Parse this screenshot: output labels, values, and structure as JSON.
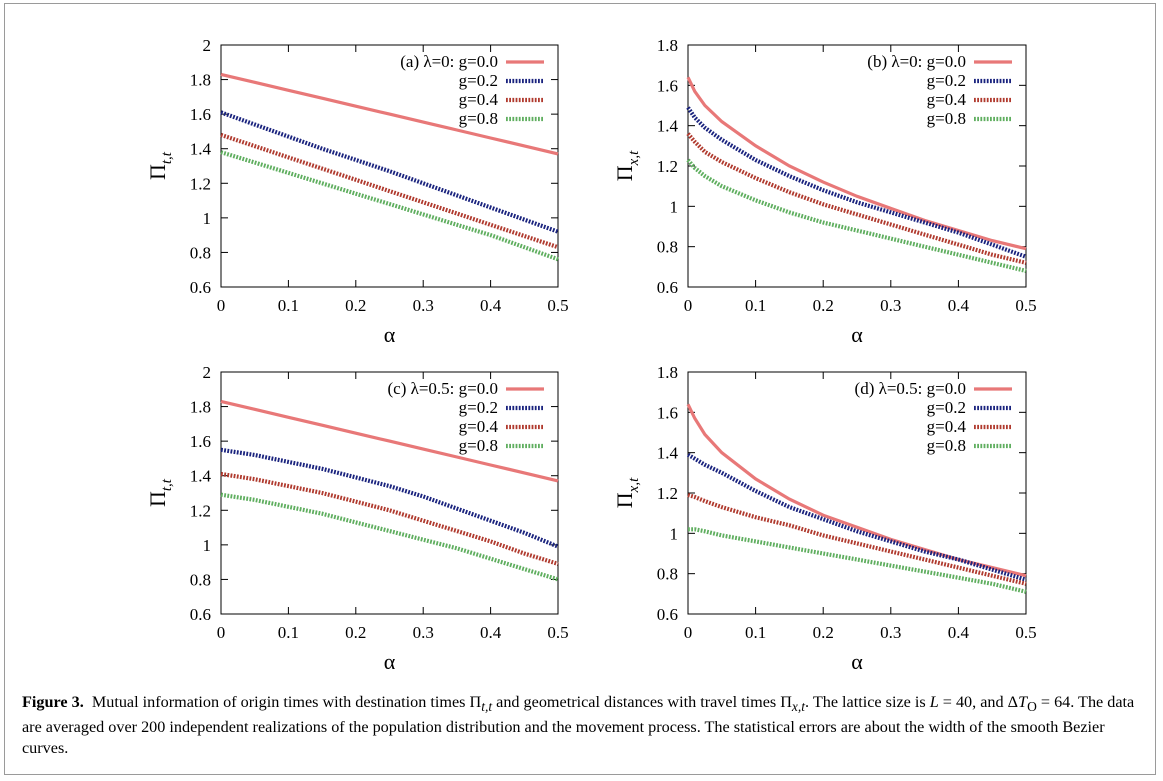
{
  "chart_data": [
    {
      "type": "line",
      "panel": "a",
      "ylabel": "Π_{t,t}",
      "xlabel": "α",
      "xlim": [
        0,
        0.5
      ],
      "ylim": [
        0.6,
        2
      ],
      "xticks": [
        "0",
        "0.1",
        "0.2",
        "0.3",
        "0.4",
        "0.5"
      ],
      "yticks": [
        "0.6",
        "0.8",
        "1",
        "1.2",
        "1.4",
        "1.6",
        "1.8",
        "2"
      ],
      "legend_title": "(a) λ=0:",
      "legend_position": "top-right",
      "grid": false,
      "x": [
        0,
        0.05,
        0.1,
        0.15,
        0.2,
        0.25,
        0.3,
        0.35,
        0.4,
        0.45,
        0.5
      ],
      "series": [
        {
          "name": "g=0.0",
          "color": "#e87878",
          "style": "solid",
          "values": [
            1.83,
            1.784,
            1.738,
            1.692,
            1.646,
            1.6,
            1.554,
            1.508,
            1.462,
            1.416,
            1.37
          ]
        },
        {
          "name": "g=0.2",
          "color": "#1a237e",
          "style": "dotted",
          "values": [
            1.61,
            1.54,
            1.47,
            1.4,
            1.335,
            1.27,
            1.2,
            1.13,
            1.06,
            0.99,
            0.92
          ]
        },
        {
          "name": "g=0.4",
          "color": "#b03a2e",
          "style": "dotted",
          "values": [
            1.48,
            1.415,
            1.35,
            1.285,
            1.22,
            1.155,
            1.09,
            1.025,
            0.96,
            0.895,
            0.83
          ]
        },
        {
          "name": "g=0.8",
          "color": "#5fae5f",
          "style": "dotted",
          "values": [
            1.38,
            1.32,
            1.26,
            1.2,
            1.14,
            1.08,
            1.02,
            0.96,
            0.9,
            0.83,
            0.76
          ]
        }
      ]
    },
    {
      "type": "line",
      "panel": "b",
      "ylabel": "Π_{x,t}",
      "xlabel": "α",
      "xlim": [
        0,
        0.5
      ],
      "ylim": [
        0.6,
        1.8
      ],
      "xticks": [
        "0",
        "0.1",
        "0.2",
        "0.3",
        "0.4",
        "0.5"
      ],
      "yticks": [
        "0.6",
        "0.8",
        "1",
        "1.2",
        "1.4",
        "1.6",
        "1.8"
      ],
      "legend_title": "(b) λ=0:",
      "legend_position": "top-right",
      "grid": false,
      "x": [
        0,
        0.01,
        0.025,
        0.05,
        0.1,
        0.15,
        0.2,
        0.25,
        0.3,
        0.35,
        0.4,
        0.45,
        0.5
      ],
      "series": [
        {
          "name": "g=0.0",
          "color": "#e87878",
          "style": "solid",
          "values": [
            1.64,
            1.57,
            1.5,
            1.42,
            1.3,
            1.2,
            1.12,
            1.05,
            0.99,
            0.93,
            0.88,
            0.83,
            0.79
          ]
        },
        {
          "name": "g=0.2",
          "color": "#1a237e",
          "style": "dotted",
          "values": [
            1.49,
            1.44,
            1.39,
            1.33,
            1.23,
            1.15,
            1.08,
            1.02,
            0.97,
            0.92,
            0.87,
            0.81,
            0.75
          ]
        },
        {
          "name": "g=0.4",
          "color": "#b03a2e",
          "style": "dotted",
          "values": [
            1.36,
            1.32,
            1.27,
            1.22,
            1.14,
            1.07,
            1.01,
            0.96,
            0.91,
            0.86,
            0.81,
            0.76,
            0.72
          ]
        },
        {
          "name": "g=0.8",
          "color": "#5fae5f",
          "style": "dotted",
          "values": [
            1.23,
            1.19,
            1.15,
            1.1,
            1.03,
            0.97,
            0.92,
            0.88,
            0.84,
            0.8,
            0.76,
            0.72,
            0.68
          ]
        }
      ]
    },
    {
      "type": "line",
      "panel": "c",
      "ylabel": "Π_{t,t}",
      "xlabel": "α",
      "xlim": [
        0,
        0.5
      ],
      "ylim": [
        0.6,
        2
      ],
      "xticks": [
        "0",
        "0.1",
        "0.2",
        "0.3",
        "0.4",
        "0.5"
      ],
      "yticks": [
        "0.6",
        "0.8",
        "1",
        "1.2",
        "1.4",
        "1.6",
        "1.8",
        "2"
      ],
      "legend_title": "(c) λ=0.5:",
      "legend_position": "top-right",
      "grid": false,
      "x": [
        0,
        0.05,
        0.1,
        0.15,
        0.2,
        0.25,
        0.3,
        0.35,
        0.4,
        0.45,
        0.5
      ],
      "series": [
        {
          "name": "g=0.0",
          "color": "#e87878",
          "style": "solid",
          "values": [
            1.83,
            1.784,
            1.738,
            1.692,
            1.646,
            1.6,
            1.554,
            1.508,
            1.462,
            1.416,
            1.37
          ]
        },
        {
          "name": "g=0.2",
          "color": "#1a237e",
          "style": "dotted",
          "values": [
            1.55,
            1.52,
            1.48,
            1.44,
            1.39,
            1.34,
            1.28,
            1.21,
            1.14,
            1.07,
            0.99
          ]
        },
        {
          "name": "g=0.4",
          "color": "#b03a2e",
          "style": "dotted",
          "values": [
            1.41,
            1.38,
            1.34,
            1.3,
            1.25,
            1.2,
            1.14,
            1.08,
            1.02,
            0.95,
            0.89
          ]
        },
        {
          "name": "g=0.8",
          "color": "#5fae5f",
          "style": "dotted",
          "values": [
            1.29,
            1.26,
            1.22,
            1.18,
            1.13,
            1.08,
            1.03,
            0.98,
            0.92,
            0.86,
            0.8
          ]
        }
      ]
    },
    {
      "type": "line",
      "panel": "d",
      "ylabel": "Π_{x,t}",
      "xlabel": "α",
      "xlim": [
        0,
        0.5
      ],
      "ylim": [
        0.6,
        1.8
      ],
      "xticks": [
        "0",
        "0.1",
        "0.2",
        "0.3",
        "0.4",
        "0.5"
      ],
      "yticks": [
        "0.6",
        "0.8",
        "1",
        "1.2",
        "1.4",
        "1.6",
        "1.8"
      ],
      "legend_title": "(d) λ=0.5:",
      "legend_position": "top-right",
      "grid": false,
      "x": [
        0,
        0.01,
        0.025,
        0.05,
        0.1,
        0.15,
        0.2,
        0.25,
        0.3,
        0.35,
        0.4,
        0.45,
        0.5
      ],
      "series": [
        {
          "name": "g=0.0",
          "color": "#e87878",
          "style": "solid",
          "values": [
            1.64,
            1.57,
            1.49,
            1.4,
            1.27,
            1.17,
            1.09,
            1.03,
            0.97,
            0.92,
            0.87,
            0.83,
            0.79
          ]
        },
        {
          "name": "g=0.2",
          "color": "#1a237e",
          "style": "dotted",
          "values": [
            1.39,
            1.37,
            1.34,
            1.3,
            1.21,
            1.13,
            1.07,
            1.01,
            0.96,
            0.91,
            0.87,
            0.82,
            0.77
          ]
        },
        {
          "name": "g=0.4",
          "color": "#b03a2e",
          "style": "dotted",
          "values": [
            1.19,
            1.18,
            1.16,
            1.13,
            1.08,
            1.04,
            0.99,
            0.95,
            0.91,
            0.87,
            0.83,
            0.79,
            0.75
          ]
        },
        {
          "name": "g=0.8",
          "color": "#5fae5f",
          "style": "dotted",
          "values": [
            1.02,
            1.02,
            1.01,
            0.99,
            0.96,
            0.93,
            0.9,
            0.87,
            0.84,
            0.81,
            0.78,
            0.75,
            0.71
          ]
        }
      ]
    }
  ],
  "caption": {
    "label": "Figure 3.",
    "text_1": "Mutual information of origin times with destination times Π",
    "sub_1": "t,t",
    "text_2": " and geometrical distances with travel times Π",
    "sub_2": "x,t",
    "text_3": ". The lattice size is ",
    "L_symbol": "L",
    "text_4": " = 40, and Δ",
    "T_symbol": "T",
    "T_sub": "O",
    "text_5": " = 64. The data are averaged over 200 independent realizations of the population distribution and the movement process. The statistical errors are about the width of the smooth Bezier curves."
  }
}
